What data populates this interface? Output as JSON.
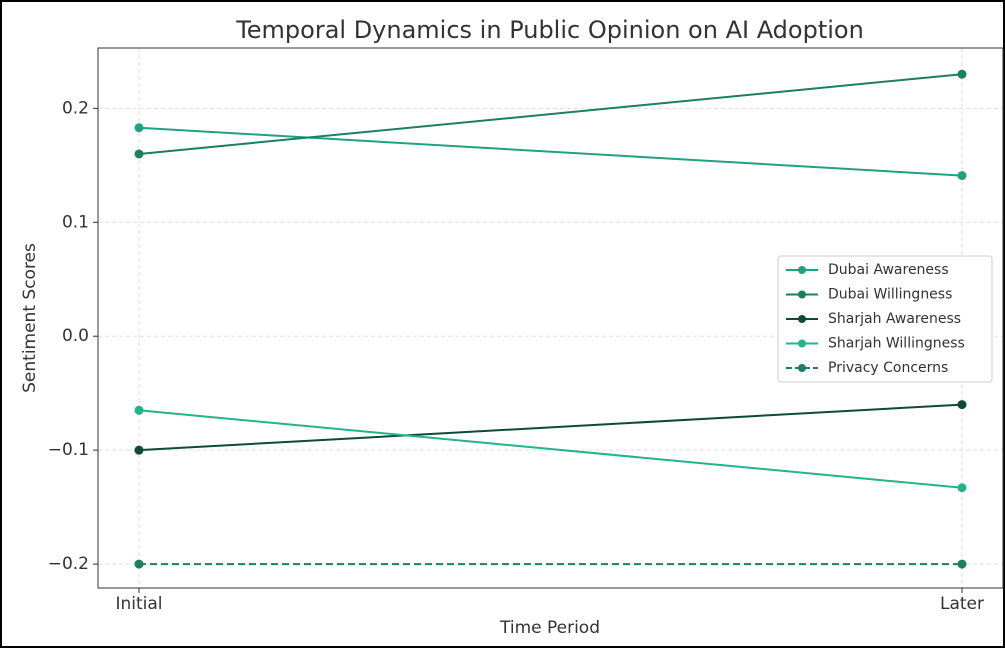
{
  "chart_data": {
    "type": "line",
    "title": "Temporal Dynamics in Public Opinion on AI Adoption",
    "x_label": "Time Period",
    "y_label": "Sentiment Scores",
    "categories": [
      "Initial",
      "Later"
    ],
    "series": [
      {
        "name": "Dubai Awareness",
        "color": "#1fa283",
        "values": [
          0.183,
          0.141
        ]
      },
      {
        "name": "Dubai Willingness",
        "color": "#1b7f62",
        "values": [
          0.16,
          0.23
        ]
      },
      {
        "name": "Sharjah Awareness",
        "color": "#0d4a38",
        "values": [
          -0.1,
          -0.06
        ]
      },
      {
        "name": "Sharjah Willingness",
        "color": "#22b48c",
        "values": [
          -0.065,
          -0.133
        ]
      },
      {
        "name": "Privacy Concerns",
        "color": "#1b7f62",
        "values": [
          -0.2,
          -0.2
        ],
        "dashed": true
      }
    ],
    "ylim": [
      -0.221,
      0.253
    ],
    "yticks": [
      {
        "value": -0.2,
        "label": "−0.2"
      },
      {
        "value": -0.1,
        "label": "−0.1"
      },
      {
        "value": 0,
        "label": "0.0"
      },
      0.1,
      0.2
    ],
    "grid": true,
    "legend": "center right"
  }
}
